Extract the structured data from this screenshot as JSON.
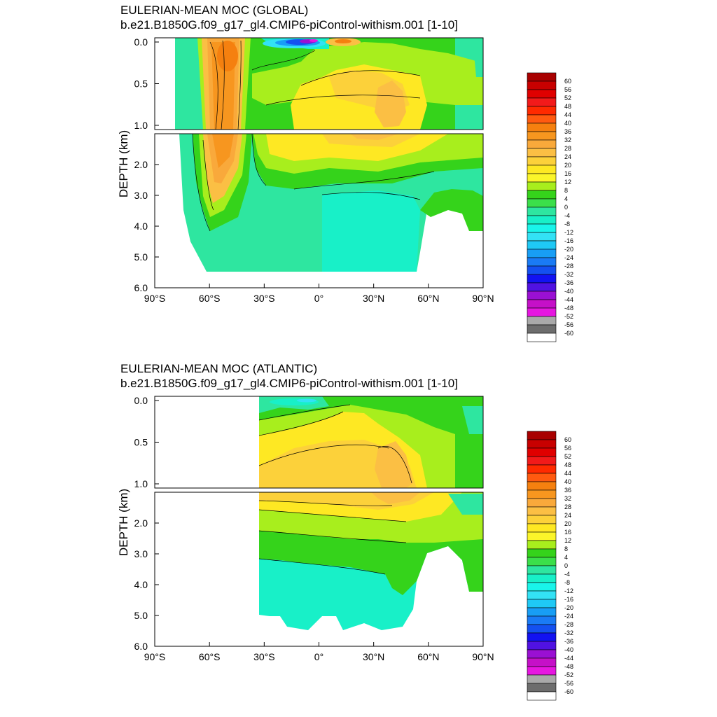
{
  "chart_data": [
    {
      "type": "heatmap",
      "title": "EULERIAN-MEAN MOC (GLOBAL)",
      "subtitle": "b.e21.B1850G.f09_g17_gl4.CMIP6-piControl-withism.001 [1-10]",
      "ylabel": "DEPTH (km)",
      "xlabel": "",
      "xlim": [
        -90,
        90
      ],
      "ylim": [
        6.0,
        0.0
      ],
      "upper_panel_depth_range": [
        0.0,
        1.0
      ],
      "lower_panel_depth_range": [
        1.0,
        6.0
      ],
      "x_ticks": [
        -90,
        -60,
        -30,
        0,
        30,
        60,
        90
      ],
      "x_tick_labels": [
        "90°S",
        "60°S",
        "30°S",
        "0°",
        "30°N",
        "60°N",
        "90°N"
      ],
      "y_ticks_upper": [
        0.0,
        0.5,
        1.0
      ],
      "y_tick_labels_upper": [
        "0.0",
        "0.5",
        "1.0"
      ],
      "y_ticks_lower": [
        2.0,
        3.0,
        4.0,
        5.0,
        6.0
      ],
      "y_tick_labels_lower": [
        "2.0",
        "3.0",
        "4.0",
        "5.0",
        "6.0"
      ],
      "lat_range": [
        -78,
        90
      ]
    },
    {
      "type": "heatmap",
      "title": "EULERIAN-MEAN MOC (ATLANTIC)",
      "subtitle": "b.e21.B1850G.f09_g17_gl4.CMIP6-piControl-withism.001 [1-10]",
      "ylabel": "DEPTH (km)",
      "xlabel": "",
      "xlim": [
        -90,
        90
      ],
      "ylim": [
        6.0,
        0.0
      ],
      "upper_panel_depth_range": [
        0.0,
        1.0
      ],
      "lower_panel_depth_range": [
        1.0,
        6.0
      ],
      "x_ticks": [
        -90,
        -60,
        -30,
        0,
        30,
        60,
        90
      ],
      "x_tick_labels": [
        "90°S",
        "60°S",
        "30°S",
        "0°",
        "30°N",
        "60°N",
        "90°N"
      ],
      "y_ticks_upper": [
        0.0,
        0.5,
        1.0
      ],
      "y_tick_labels_upper": [
        "0.0",
        "0.5",
        "1.0"
      ],
      "y_ticks_lower": [
        2.0,
        3.0,
        4.0,
        5.0,
        6.0
      ],
      "y_tick_labels_lower": [
        "2.0",
        "3.0",
        "4.0",
        "5.0",
        "6.0"
      ],
      "lat_range": [
        -33,
        90
      ]
    }
  ],
  "colorbar": {
    "levels": [
      "60",
      "56",
      "52",
      "48",
      "44",
      "40",
      "36",
      "32",
      "28",
      "24",
      "20",
      "16",
      "12",
      "8",
      "4",
      "0",
      "-4",
      "-8",
      "-12",
      "-16",
      "-20",
      "-24",
      "-28",
      "-32",
      "-36",
      "-40",
      "-44",
      "-48",
      "-52",
      "-56",
      "-60"
    ],
    "colors": [
      "#a80000",
      "#c80000",
      "#e00000",
      "#f21a1a",
      "#ff2a00",
      "#ff5a10",
      "#f5800f",
      "#f7961f",
      "#f9a93b",
      "#fbbf44",
      "#fcd13a",
      "#fee823",
      "#fbf52a",
      "#a8ee1d",
      "#35d31b",
      "#3bdf4a",
      "#2ee6a0",
      "#18f0c8",
      "#19f5ea",
      "#33e2f5",
      "#1fc9f5",
      "#189ef5",
      "#1a7bf5",
      "#1450f0",
      "#1212f2",
      "#5012e2",
      "#9a10d3",
      "#c510c8",
      "#e616e0",
      "#a9a9a9",
      "#6d6d6d",
      "#ffffff"
    ]
  }
}
